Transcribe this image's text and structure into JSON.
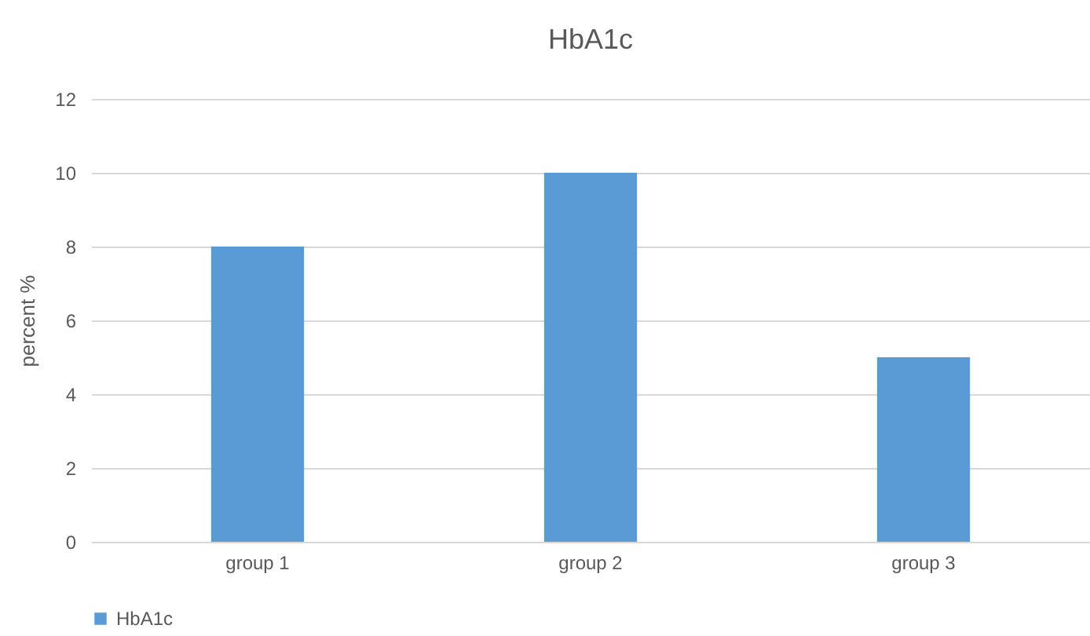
{
  "chart_data": {
    "type": "bar",
    "title": "HbA1c",
    "ylabel": "percent %",
    "categories": [
      "group 1",
      "group 2",
      "group 3"
    ],
    "series": [
      {
        "name": "HbA1c",
        "color": "#5b9bd5",
        "values": [
          8,
          10,
          5
        ]
      }
    ],
    "ylim": [
      0,
      12
    ],
    "yticks": [
      0,
      2,
      4,
      6,
      8,
      10,
      12
    ],
    "grid": "y",
    "legend": "bottom"
  }
}
